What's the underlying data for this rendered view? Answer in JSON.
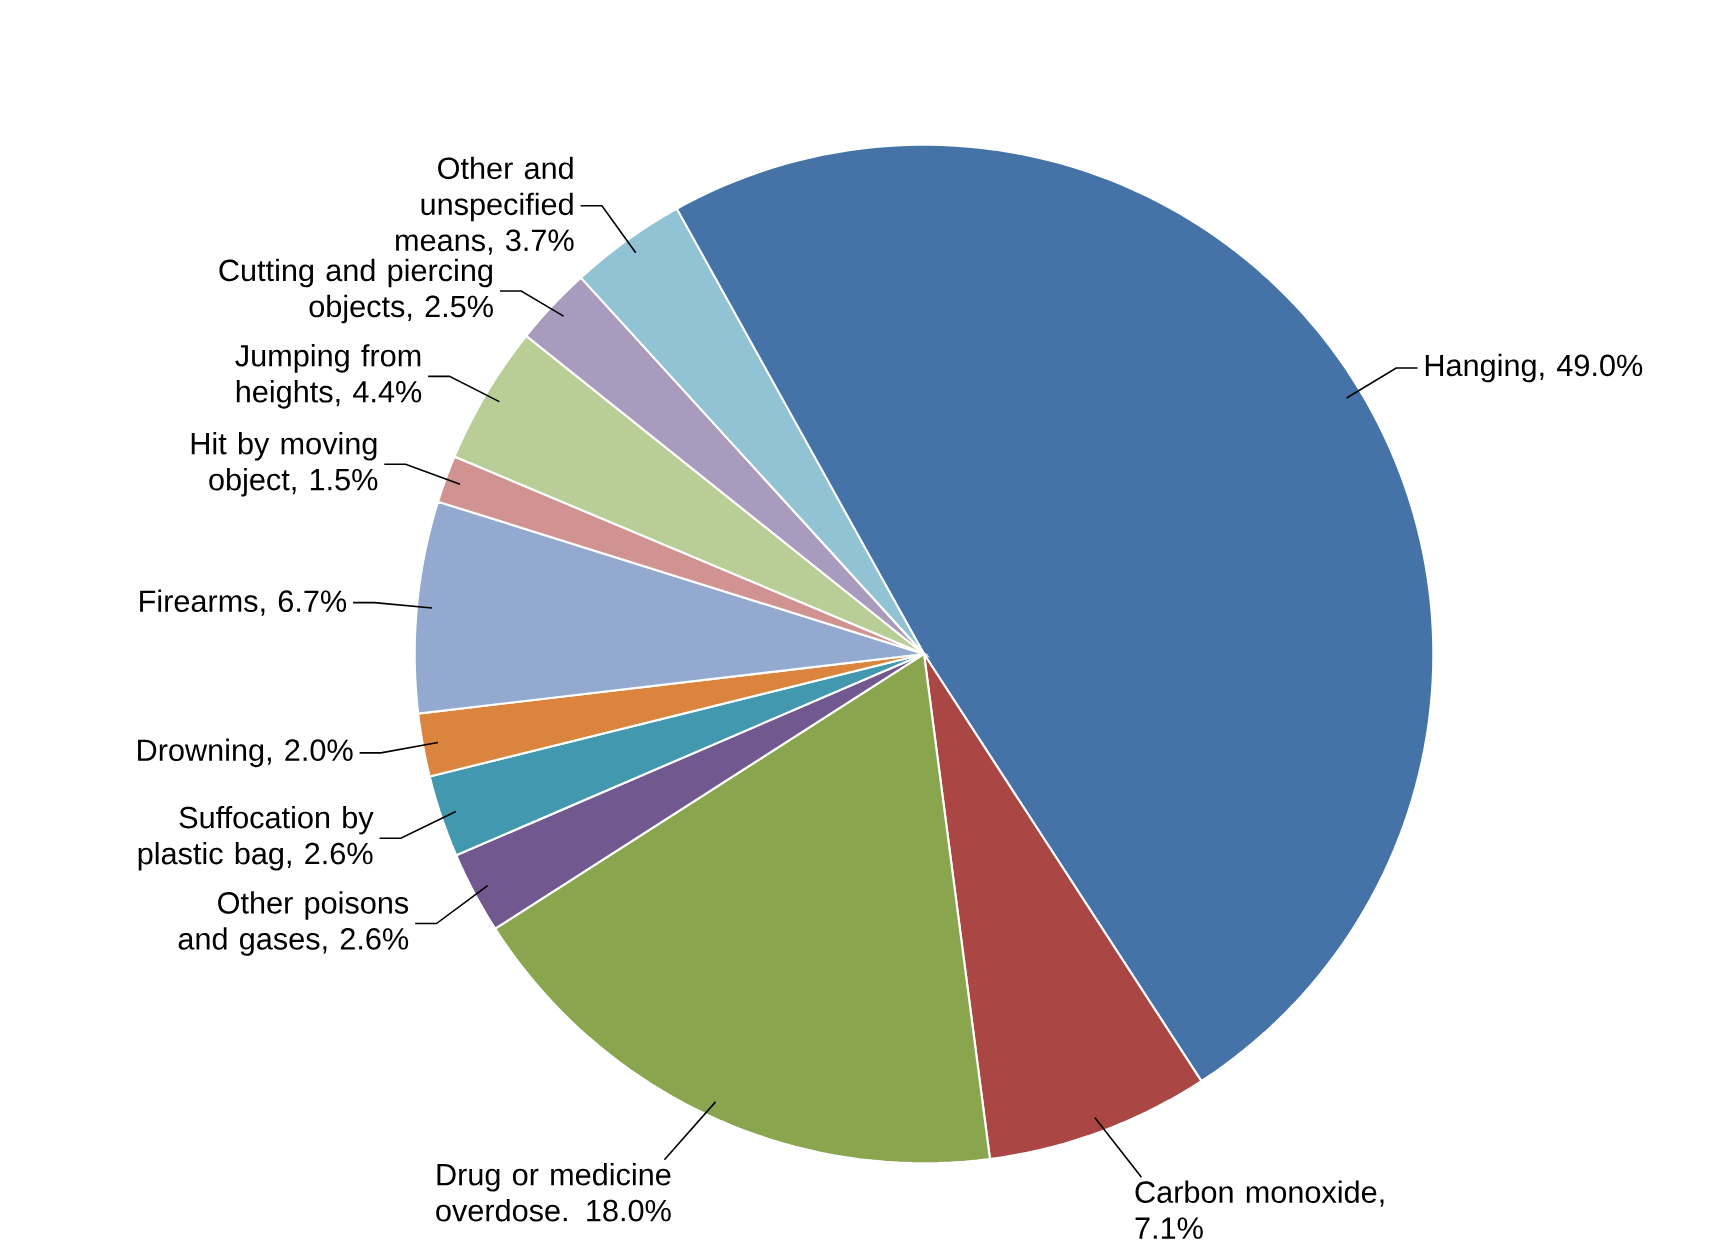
{
  "chart_data": {
    "type": "pie",
    "categories": [
      "Hanging, 49.0%",
      "Carbon monoxide, 7.1%",
      "Drug or medicine overdose. 18.0%",
      "Other poisons and gases, 2.6%",
      "Suffocation by plastic bag, 2.6%",
      "Drowning, 2.0%",
      "Firearms, 6.7%",
      "Hit by moving object, 1.5%",
      "Jumping from heights, 4.4%",
      "Cutting and piercing objects, 2.5%",
      "Other and unspecified means, 3.7%"
    ],
    "values": [
      49.0,
      7.1,
      18.0,
      2.6,
      2.6,
      2.0,
      6.7,
      1.5,
      4.4,
      2.5,
      3.7
    ],
    "colors": [
      "#4573a7",
      "#aa4744",
      "#89a54e",
      "#71588f",
      "#4198af",
      "#db843d",
      "#93a9cf",
      "#d19392",
      "#b9cd96",
      "#a99bbd",
      "#92c3d5"
    ]
  }
}
